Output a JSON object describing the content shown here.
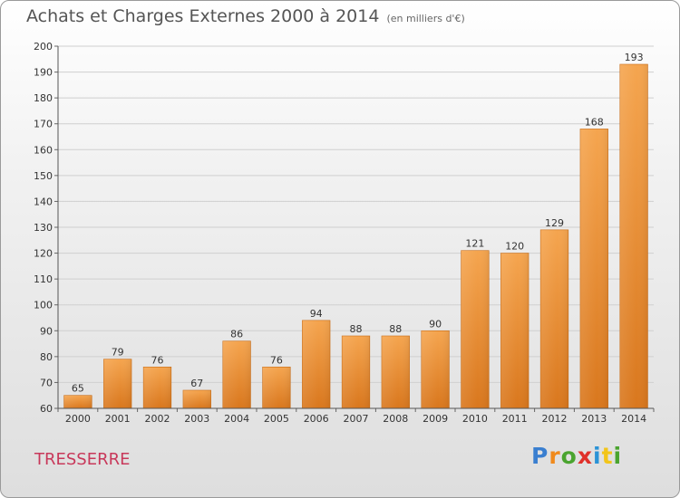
{
  "title": "Achats et Charges Externes 2000 à 2014",
  "unit": "(en milliers d'€)",
  "commune": "TRESSERRE",
  "logo": {
    "letters": [
      "P",
      "r",
      "o",
      "x",
      "i",
      "t",
      "i"
    ]
  },
  "colors": {
    "bar_light": "#f5a54f",
    "bar_dark": "#d9771d",
    "logo_letters": [
      "#3a7fd0",
      "#f08a1c",
      "#4aa42f",
      "#e0302a",
      "#2b93d6",
      "#f2c51a",
      "#4aa42f"
    ],
    "commune": "#c8385a"
  },
  "chart_data": {
    "type": "bar",
    "title": "Achats et Charges Externes 2000 à 2014",
    "subtitle": "(en milliers d'€)",
    "categories": [
      "2000",
      "2001",
      "2002",
      "2003",
      "2004",
      "2005",
      "2006",
      "2007",
      "2008",
      "2009",
      "2010",
      "2011",
      "2012",
      "2013",
      "2014"
    ],
    "values": [
      65,
      79,
      76,
      67,
      86,
      76,
      94,
      88,
      88,
      90,
      121,
      120,
      129,
      168,
      193
    ],
    "ylim": [
      60,
      200
    ],
    "yticks": [
      60,
      70,
      80,
      90,
      100,
      110,
      120,
      130,
      140,
      150,
      160,
      170,
      180,
      190,
      200
    ],
    "grid": true,
    "legend": "none"
  }
}
